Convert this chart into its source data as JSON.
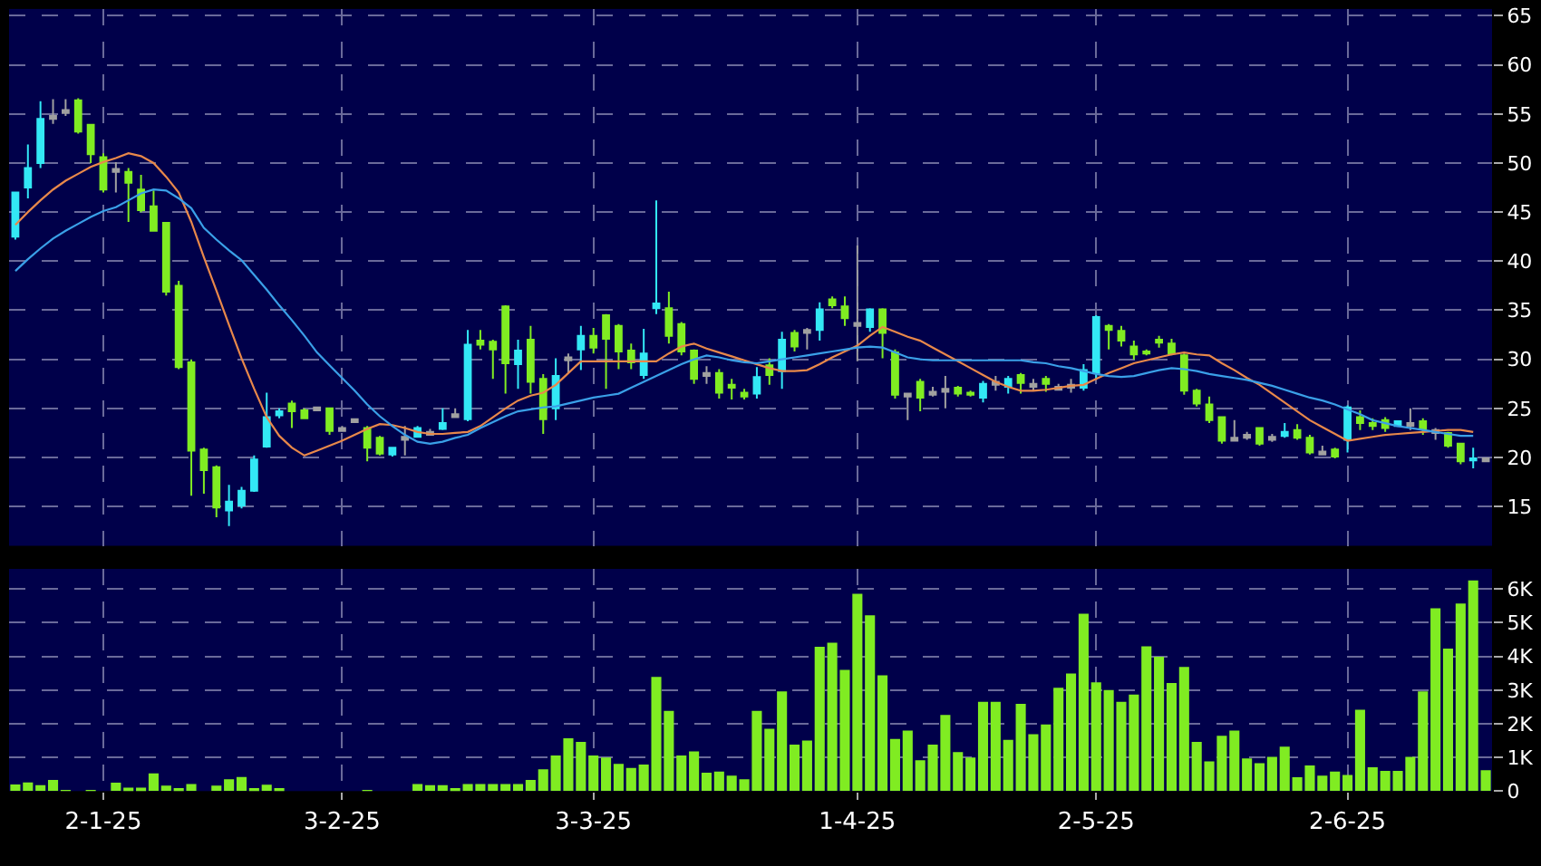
{
  "chart_data": [
    {
      "type": "candlestick",
      "categories": [
        null,
        null,
        null,
        null,
        null,
        null,
        null,
        "2-1-25",
        null,
        null,
        null,
        null,
        null,
        null,
        null,
        null,
        null,
        null,
        null,
        null,
        null,
        null,
        null,
        null,
        null,
        null,
        "3-2-25",
        null,
        null,
        null,
        null,
        null,
        null,
        null,
        null,
        null,
        null,
        null,
        null,
        null,
        null,
        null,
        null,
        null,
        null,
        null,
        "3-3-25",
        null,
        null,
        null,
        null,
        null,
        null,
        null,
        null,
        null,
        null,
        null,
        null,
        null,
        null,
        null,
        null,
        null,
        null,
        null,
        null,
        "1-4-25",
        null,
        null,
        null,
        null,
        null,
        null,
        null,
        null,
        null,
        null,
        null,
        null,
        null,
        null,
        null,
        null,
        null,
        null,
        "2-5-25",
        null,
        null,
        null,
        null,
        null,
        null,
        null,
        null,
        null,
        null,
        null,
        null,
        null,
        null,
        null,
        null,
        null,
        null,
        null,
        "2-6-25",
        null,
        null,
        null,
        null,
        null,
        null,
        null,
        null,
        null,
        null,
        null
      ],
      "ohlc": [
        [
          42.5,
          47,
          42.2,
          47
        ],
        [
          47.5,
          51.9,
          46.4,
          49.5
        ],
        [
          50,
          56.3,
          49.5,
          54.5
        ],
        [
          54.8,
          56.5,
          54,
          54.5
        ],
        [
          55.4,
          56.5,
          54.8,
          55.1
        ],
        [
          56.4,
          56.6,
          53,
          53.2
        ],
        [
          53.9,
          54,
          50,
          50.9
        ],
        [
          50.6,
          51,
          47,
          47.3
        ],
        [
          49.4,
          50.1,
          47,
          49.1
        ],
        [
          49.1,
          49.5,
          44,
          48
        ],
        [
          47.3,
          48.8,
          45,
          45.2
        ],
        [
          45.6,
          47.2,
          43,
          43.1
        ],
        [
          43.9,
          44,
          36.5,
          36.9
        ],
        [
          37.5,
          38,
          29,
          29.2
        ],
        [
          29.7,
          30,
          16.1,
          20.7
        ],
        [
          20.8,
          21,
          16.3,
          18.7
        ],
        [
          19,
          19.2,
          13.9,
          14.9
        ],
        [
          14.6,
          17.2,
          13,
          15.5
        ],
        [
          15.1,
          17,
          14.8,
          16.6
        ],
        [
          16.6,
          20.2,
          16.5,
          19.8
        ],
        [
          21.1,
          26.6,
          21,
          24.1
        ],
        [
          24.3,
          25,
          24,
          24.7
        ],
        [
          25.5,
          25.8,
          23,
          24.7
        ],
        [
          24.8,
          25,
          24,
          24
        ],
        [
          25.1,
          25.2,
          24.8,
          24.8
        ],
        [
          25,
          25.1,
          22.3,
          22.7
        ],
        [
          23,
          23.2,
          22.7,
          22.7
        ],
        [
          23.9,
          24,
          23.6,
          23.6
        ],
        [
          23,
          23.2,
          19.6,
          21
        ],
        [
          22,
          22.2,
          20.2,
          20.4
        ],
        [
          20.3,
          21,
          20.1,
          21
        ],
        [
          22.1,
          23.2,
          20.2,
          21.8
        ],
        [
          22.1,
          23.2,
          22,
          23
        ],
        [
          22.6,
          22.9,
          22.3,
          22.3
        ],
        [
          22.9,
          25,
          22.8,
          23.5
        ],
        [
          24.4,
          25,
          24.1,
          24.1
        ],
        [
          23.9,
          33,
          23.7,
          31.5
        ],
        [
          31.9,
          33,
          31,
          31.5
        ],
        [
          31.8,
          32,
          28,
          31
        ],
        [
          35.4,
          35.5,
          26.5,
          29.6
        ],
        [
          29.5,
          32,
          27,
          30.9
        ],
        [
          32,
          33.4,
          26.5,
          27.7
        ],
        [
          28,
          28.5,
          22.4,
          23.9
        ],
        [
          25,
          30.1,
          23.8,
          28.3
        ],
        [
          30.2,
          30.6,
          28.6,
          29.9
        ],
        [
          31,
          33.4,
          28.9,
          32.4
        ],
        [
          32.4,
          33.2,
          30.6,
          31.2
        ],
        [
          34.5,
          34.6,
          27,
          32.1
        ],
        [
          33.4,
          33.6,
          29,
          30.8
        ],
        [
          30.9,
          31.6,
          29,
          29.7
        ],
        [
          28.4,
          33.1,
          28,
          30.6
        ],
        [
          35.2,
          46.2,
          34.6,
          35.7
        ],
        [
          35.2,
          36.9,
          31.6,
          32.4
        ],
        [
          33.6,
          33.8,
          30.4,
          30.8
        ],
        [
          30.9,
          31,
          27.5,
          28
        ],
        [
          28.6,
          29.3,
          27.5,
          28.3
        ],
        [
          28.6,
          29,
          26,
          26.6
        ],
        [
          27.4,
          28,
          25.9,
          27.1
        ],
        [
          26.6,
          27,
          25.9,
          26.2
        ],
        [
          26.5,
          29.2,
          26,
          28.2
        ],
        [
          29.4,
          30.1,
          27.4,
          28.4
        ],
        [
          28.8,
          32.8,
          27,
          32
        ],
        [
          32.7,
          33,
          30.8,
          31.3
        ],
        [
          33,
          33.2,
          31,
          32.7
        ],
        [
          33,
          35.8,
          31.9,
          35.1
        ],
        [
          36.1,
          36.4,
          35.2,
          35.5
        ],
        [
          35.4,
          36.4,
          33.4,
          34.2
        ],
        [
          33.7,
          41.6,
          29.8,
          33.4
        ],
        [
          33.3,
          35.2,
          32.8,
          35.1
        ],
        [
          35.1,
          35.2,
          30.1,
          32.7
        ],
        [
          30.7,
          31,
          26,
          26.4
        ],
        [
          26.5,
          26.6,
          23.8,
          26.2
        ],
        [
          27.7,
          28,
          24.7,
          26.1
        ],
        [
          26.7,
          27.2,
          26.2,
          26.4
        ],
        [
          27,
          28.3,
          25,
          26.7
        ],
        [
          27.1,
          27.3,
          26.2,
          26.5
        ],
        [
          26.6,
          26.8,
          26.2,
          26.4
        ],
        [
          26.1,
          27.8,
          25.6,
          27.5
        ],
        [
          27.7,
          28.3,
          26.8,
          27.4
        ],
        [
          27.2,
          28.3,
          26.5,
          28
        ],
        [
          28.4,
          28.6,
          26.5,
          27.6
        ],
        [
          27.5,
          28,
          26.8,
          27.2
        ],
        [
          28,
          28.3,
          26.7,
          27.5
        ],
        [
          27.2,
          27.5,
          26.9,
          26.9
        ],
        [
          27.4,
          28,
          26.6,
          27.1
        ],
        [
          27.1,
          29.5,
          26.8,
          28.9
        ],
        [
          28.6,
          34.5,
          28,
          34.3
        ],
        [
          33.4,
          33.6,
          31,
          33
        ],
        [
          32.9,
          33.4,
          31.3,
          31.9
        ],
        [
          31.3,
          31.9,
          30,
          30.5
        ],
        [
          30.8,
          31,
          30.4,
          30.6
        ],
        [
          32,
          32.4,
          31.2,
          31.7
        ],
        [
          31.6,
          32.1,
          30.4,
          30.6
        ],
        [
          30.4,
          30.6,
          26.4,
          26.8
        ],
        [
          26.8,
          27,
          25.2,
          25.5
        ],
        [
          25.4,
          26.2,
          23.5,
          23.8
        ],
        [
          24.1,
          24.2,
          21.4,
          21.7
        ],
        [
          22,
          23.8,
          21.7,
          21.7
        ],
        [
          22.3,
          22.6,
          21.8,
          22
        ],
        [
          23,
          23,
          21.2,
          21.4
        ],
        [
          22.1,
          22.4,
          21.6,
          21.8
        ],
        [
          22.2,
          23.5,
          22,
          22.6
        ],
        [
          22.8,
          23.4,
          21.8,
          22
        ],
        [
          22,
          22.3,
          20.3,
          20.5
        ],
        [
          20.6,
          21.2,
          20.3,
          20.3
        ],
        [
          20.8,
          21,
          19.9,
          20.1
        ],
        [
          21.8,
          25.3,
          20.5,
          25.1
        ],
        [
          24.1,
          24.8,
          22.8,
          23.5
        ],
        [
          23.5,
          24,
          22.8,
          23.2
        ],
        [
          23.8,
          24.1,
          22.6,
          23
        ],
        [
          23.2,
          23.7,
          23.2,
          23.7
        ],
        [
          23.5,
          25,
          22.8,
          23.2
        ],
        [
          23.7,
          24,
          22.3,
          22.9
        ],
        [
          22.8,
          23,
          21.8,
          22.5
        ],
        [
          22.5,
          22.6,
          21,
          21.2
        ],
        [
          21.4,
          21.5,
          19.3,
          19.6
        ],
        [
          19.7,
          21,
          18.9,
          19.9
        ],
        [
          19.9,
          20,
          19.6,
          19.6
        ]
      ],
      "colors": [
        "#33e8f5",
        "#33e8f5",
        "#33e8f5",
        "#a0a0a0",
        "#a0a0a0",
        "#80ec22",
        "#80ec22",
        "#80ec22",
        "#a0a0a0",
        "#80ec22",
        "#80ec22",
        "#80ec22",
        "#80ec22",
        "#80ec22",
        "#80ec22",
        "#80ec22",
        "#80ec22",
        "#33e8f5",
        "#33e8f5",
        "#33e8f5",
        "#33e8f5",
        "#33e8f5",
        "#80ec22",
        "#80ec22",
        "#a0a0a0",
        "#80ec22",
        "#a0a0a0",
        "#a0a0a0",
        "#80ec22",
        "#80ec22",
        "#33e8f5",
        "#a0a0a0",
        "#33e8f5",
        "#a0a0a0",
        "#33e8f5",
        "#a0a0a0",
        "#33e8f5",
        "#80ec22",
        "#80ec22",
        "#80ec22",
        "#33e8f5",
        "#80ec22",
        "#80ec22",
        "#33e8f5",
        "#a0a0a0",
        "#33e8f5",
        "#80ec22",
        "#80ec22",
        "#80ec22",
        "#80ec22",
        "#33e8f5",
        "#33e8f5",
        "#80ec22",
        "#80ec22",
        "#80ec22",
        "#a0a0a0",
        "#80ec22",
        "#80ec22",
        "#80ec22",
        "#33e8f5",
        "#80ec22",
        "#33e8f5",
        "#80ec22",
        "#a0a0a0",
        "#33e8f5",
        "#80ec22",
        "#80ec22",
        "#a0a0a0",
        "#33e8f5",
        "#80ec22",
        "#80ec22",
        "#a0a0a0",
        "#80ec22",
        "#a0a0a0",
        "#a0a0a0",
        "#80ec22",
        "#80ec22",
        "#33e8f5",
        "#a0a0a0",
        "#33e8f5",
        "#80ec22",
        "#a0a0a0",
        "#80ec22",
        "#a0a0a0",
        "#a0a0a0",
        "#33e8f5",
        "#33e8f5",
        "#80ec22",
        "#80ec22",
        "#80ec22",
        "#80ec22",
        "#80ec22",
        "#80ec22",
        "#80ec22",
        "#80ec22",
        "#80ec22",
        "#80ec22",
        "#a0a0a0",
        "#a0a0a0",
        "#80ec22",
        "#a0a0a0",
        "#33e8f5",
        "#80ec22",
        "#80ec22",
        "#a0a0a0",
        "#80ec22",
        "#33e8f5",
        "#80ec22",
        "#80ec22",
        "#80ec22",
        "#33e8f5",
        "#a0a0a0",
        "#80ec22",
        "#a0a0a0",
        "#80ec22",
        "#80ec22",
        "#33e8f5",
        "#a0a0a0"
      ],
      "series": [
        {
          "type": "line",
          "color": "#e8884a",
          "values": [
            43.7,
            45,
            46.2,
            47.3,
            48.2,
            48.9,
            49.6,
            50.1,
            50.5,
            51,
            50.7,
            50,
            48.6,
            47,
            44,
            40.4,
            37,
            33.5,
            30.1,
            27,
            24.1,
            22.2,
            21,
            20.2,
            20.7,
            21.2,
            21.7,
            22.3,
            22.9,
            23.4,
            23.3,
            23,
            22.6,
            22.4,
            22.4,
            22.5,
            22.6,
            23.2,
            24.1,
            25,
            25.8,
            26.3,
            26.6,
            27.4,
            28.6,
            29.8,
            29.8,
            29.8,
            29.8,
            29.8,
            29.8,
            29.8,
            30.6,
            31.3,
            31.6,
            31.1,
            30.7,
            30.3,
            29.9,
            29.5,
            29.1,
            28.8,
            28.8,
            28.9,
            29.5,
            30.2,
            30.8,
            31.4,
            32.4,
            33.3,
            32.8,
            32.3,
            31.9,
            31.2,
            30.5,
            29.8,
            29.1,
            28.4,
            27.7,
            27.2,
            26.8,
            26.8,
            26.9,
            27.1,
            27.3,
            27.4,
            28,
            28.6,
            29.1,
            29.6,
            29.9,
            30.2,
            30.5,
            30.7,
            30.5,
            30.4,
            29.6,
            28.9,
            28.1,
            27.4,
            26.5,
            25.6,
            24.7,
            23.8,
            23.1,
            22.4,
            21.7,
            21.9,
            22.1,
            22.3,
            22.4,
            22.5,
            22.6,
            22.7,
            22.8,
            22.8,
            22.6,
            null
          ]
        },
        {
          "type": "line",
          "color": "#3aa0e8",
          "values": [
            39,
            40.2,
            41.3,
            42.3,
            43.1,
            43.8,
            44.5,
            45.1,
            45.5,
            46.2,
            46.9,
            47.3,
            47.2,
            46.4,
            45.4,
            43.4,
            42.2,
            41.1,
            40.1,
            38.6,
            37.1,
            35.5,
            34,
            32.4,
            30.7,
            29.4,
            28.1,
            26.8,
            25.4,
            24.2,
            23.2,
            22.3,
            21.6,
            21.4,
            21.6,
            22,
            22.3,
            23,
            23.6,
            24.2,
            24.7,
            24.9,
            25.1,
            25.2,
            25.5,
            25.8,
            26.1,
            26.3,
            26.5,
            27.1,
            27.7,
            28.3,
            28.9,
            29.5,
            30,
            30.4,
            30.2,
            29.9,
            29.7,
            29.6,
            29.8,
            30,
            30.2,
            30.4,
            30.6,
            30.8,
            31,
            31.2,
            31.3,
            31.2,
            30.7,
            30.2,
            30,
            29.9,
            29.9,
            29.9,
            29.9,
            29.9,
            29.9,
            29.9,
            29.9,
            29.7,
            29.6,
            29.3,
            29.1,
            28.8,
            28.5,
            28.3,
            28.2,
            28.3,
            28.6,
            28.9,
            29.1,
            29,
            28.8,
            28.5,
            28.3,
            28.1,
            27.9,
            27.6,
            27.3,
            26.9,
            26.5,
            26.1,
            25.8,
            25.4,
            24.9,
            24.4,
            23.8,
            23.5,
            23.2,
            23,
            22.8,
            22.6,
            22.4,
            22.2,
            22.2,
            null
          ]
        }
      ],
      "ylim": [
        11,
        65.7
      ],
      "yticks": [
        15,
        20,
        25,
        30,
        35,
        40,
        45,
        50,
        55,
        60,
        65
      ],
      "grid": true,
      "tick_labels": "y"
    },
    {
      "type": "bar",
      "categories": [
        null,
        null,
        null,
        null,
        null,
        null,
        null,
        "2-1-25",
        null,
        null,
        null,
        null,
        null,
        null,
        null,
        null,
        null,
        null,
        null,
        null,
        null,
        null,
        null,
        null,
        null,
        null,
        "3-2-25",
        null,
        null,
        null,
        null,
        null,
        null,
        null,
        null,
        null,
        null,
        null,
        null,
        null,
        null,
        null,
        null,
        null,
        null,
        null,
        "3-3-25",
        null,
        null,
        null,
        null,
        null,
        null,
        null,
        null,
        null,
        null,
        null,
        null,
        null,
        null,
        null,
        null,
        null,
        null,
        null,
        null,
        "1-4-25",
        null,
        null,
        null,
        null,
        null,
        null,
        null,
        null,
        null,
        null,
        null,
        null,
        null,
        null,
        null,
        null,
        null,
        null,
        "2-5-25",
        null,
        null,
        null,
        null,
        null,
        null,
        null,
        null,
        null,
        null,
        null,
        null,
        null,
        null,
        null,
        null,
        null,
        null,
        null,
        "2-6-25",
        null,
        null,
        null,
        null,
        null,
        null,
        null,
        null,
        null,
        null,
        null
      ],
      "values": [
        0.2,
        0.26,
        0.18,
        0.33,
        0.02,
        0,
        0.01,
        0,
        0.25,
        0.1,
        0.1,
        0.53,
        0.16,
        0.09,
        0.21,
        0,
        0.16,
        0.35,
        0.42,
        0.05,
        0.19,
        0.05,
        0,
        0,
        0,
        0,
        0,
        0,
        0.03,
        0,
        0,
        0,
        0.21,
        0.18,
        0.18,
        0.05,
        0.21,
        0.21,
        0.21,
        0.21,
        0.21,
        0.33,
        0.65,
        1.06,
        1.57,
        1.46,
        1.06,
        1.0,
        0.81,
        0.69,
        0.79,
        3.39,
        2.38,
        1.06,
        1.18,
        0.55,
        0.58,
        0.46,
        0.35,
        2.38,
        1.85,
        2.96,
        1.38,
        1.5,
        4.29,
        4.41,
        3.6,
        5.86,
        5.22,
        3.44,
        1.55,
        1.8,
        0.92,
        1.38,
        2.26,
        1.16,
        1.0,
        2.65,
        2.65,
        1.52,
        2.59,
        1.69,
        1.98,
        3.07,
        3.49,
        5.27,
        3.23,
        3.0,
        2.65,
        2.87,
        4.3,
        3.99,
        3.21,
        3.69,
        1.46,
        0.88,
        1.64,
        1.8,
        0.97,
        0.83,
        1.02,
        1.32,
        0.41,
        0.76,
        0.46,
        0.58,
        0.48,
        2.42,
        0.71,
        0.6,
        0.6,
        1.02,
        2.96,
        5.43,
        4.23,
        5.57,
        6.26,
        0.62
      ],
      "color": "#80ec22",
      "ylim": [
        0,
        6.6
      ],
      "yticks": [
        0,
        {
          "value": 1,
          "label": "1K"
        },
        {
          "value": 2,
          "label": "2K"
        },
        {
          "value": 3,
          "label": "3K"
        },
        {
          "value": 4,
          "label": "4K"
        },
        {
          "value": 5,
          "label": "5K"
        },
        {
          "value": 6,
          "label": "6K"
        }
      ],
      "grid": true
    }
  ]
}
